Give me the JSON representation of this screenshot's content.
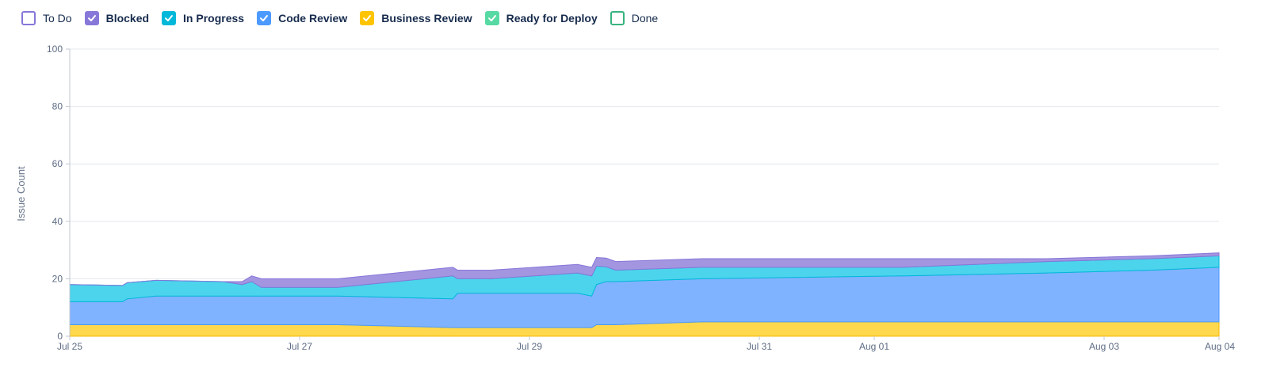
{
  "chart_data": {
    "type": "area",
    "stacked": true,
    "ylabel": "Issue Count",
    "ylim": [
      0,
      100
    ],
    "yticks": [
      "0",
      "20",
      "40",
      "60",
      "80",
      "100"
    ],
    "xlim": [
      "2024-07-25",
      "2024-08-04"
    ],
    "xticks": [
      {
        "date": "2024-07-25",
        "label": "Jul 25"
      },
      {
        "date": "2024-07-27",
        "label": "Jul 27"
      },
      {
        "date": "2024-07-29",
        "label": "Jul 29"
      },
      {
        "date": "2024-07-31",
        "label": "Jul 31"
      },
      {
        "date": "2024-08-01",
        "label": "Aug 01"
      },
      {
        "date": "2024-08-03",
        "label": "Aug 03"
      },
      {
        "date": "2024-08-04",
        "label": "Aug 04"
      }
    ],
    "grid": true,
    "legend_position": "top-left",
    "legend": [
      {
        "name": "To Do",
        "checked": false,
        "color": "#8777D9",
        "bold": false
      },
      {
        "name": "Blocked",
        "checked": true,
        "color": "#8777D9",
        "bold": true
      },
      {
        "name": "In Progress",
        "checked": true,
        "color": "#00B8D9",
        "bold": true
      },
      {
        "name": "Code Review",
        "checked": true,
        "color": "#4C9AFF",
        "bold": true
      },
      {
        "name": "Business Review",
        "checked": true,
        "color": "#FFC400",
        "bold": true
      },
      {
        "name": "Ready for Deploy",
        "checked": true,
        "color": "#57D9A3",
        "bold": true
      },
      {
        "name": "Done",
        "checked": false,
        "color": "#36B37E",
        "bold": false
      }
    ],
    "series": [
      {
        "name": "Business Review",
        "fill": "#FFD84D",
        "stroke": "#F5B800",
        "points": [
          [
            "2024-07-25 00:00",
            4
          ],
          [
            "2024-07-27 08:00",
            4
          ],
          [
            "2024-07-27 08:00",
            3
          ],
          [
            "2024-07-29 13:00",
            3
          ],
          [
            "2024-07-29 13:00",
            4
          ],
          [
            "2024-07-29 18:00",
            4
          ],
          [
            "2024-07-29 18:00",
            5
          ],
          [
            "2024-08-04 00:00",
            5
          ]
        ]
      },
      {
        "name": "Code Review",
        "fill": "#80B3FF",
        "stroke": "#4C9AFF",
        "points": [
          [
            "2024-07-25 00:00",
            8
          ],
          [
            "2024-07-25 11:00",
            8
          ],
          [
            "2024-07-25 12:00",
            9
          ],
          [
            "2024-07-25 18:00",
            10
          ],
          [
            "2024-07-27 08:00",
            10
          ],
          [
            "2024-07-27 08:00",
            10
          ],
          [
            "2024-07-28 08:00",
            10
          ],
          [
            "2024-07-28 09:00",
            12
          ],
          [
            "2024-07-28 16:00",
            12
          ],
          [
            "2024-07-28 16:00",
            13
          ],
          [
            "2024-07-29 10:00",
            12
          ],
          [
            "2024-07-29 13:00",
            11
          ],
          [
            "2024-07-29 14:00",
            14
          ],
          [
            "2024-07-29 16:00",
            15
          ],
          [
            "2024-07-29 18:00",
            15
          ],
          [
            "2024-07-30 12:00",
            15
          ],
          [
            "2024-08-01 06:00",
            16
          ],
          [
            "2024-08-01 06:00",
            17
          ],
          [
            "2024-08-02 12:00",
            17
          ],
          [
            "2024-08-03 10:00",
            18
          ],
          [
            "2024-08-03 10:00",
            19
          ],
          [
            "2024-08-04 00:00",
            19
          ]
        ]
      },
      {
        "name": "In Progress",
        "fill": "#4CD4EC",
        "stroke": "#00B8D9",
        "points": [
          [
            "2024-07-25 00:00",
            6
          ],
          [
            "2024-07-26 08:00",
            5
          ],
          [
            "2024-07-26 12:00",
            4
          ],
          [
            "2024-07-26 14:00",
            5
          ],
          [
            "2024-07-26 16:00",
            3
          ],
          [
            "2024-07-27 08:00",
            3
          ],
          [
            "2024-07-27 08:00",
            4
          ],
          [
            "2024-07-27 08:00",
            7
          ],
          [
            "2024-07-28 08:00",
            8
          ],
          [
            "2024-07-28 08:00",
            5
          ],
          [
            "2024-07-28 16:00",
            5
          ],
          [
            "2024-07-28 16:00",
            6
          ],
          [
            "2024-07-29 10:00",
            7
          ],
          [
            "2024-07-29 13:00",
            7
          ],
          [
            "2024-07-29 18:00",
            4
          ],
          [
            "2024-07-30 12:00",
            4
          ],
          [
            "2024-08-01 06:00",
            3
          ],
          [
            "2024-08-01 06:00",
            3
          ],
          [
            "2024-08-02 12:00",
            4
          ],
          [
            "2024-08-03 10:00",
            4
          ],
          [
            "2024-08-03 10:00",
            4
          ],
          [
            "2024-08-04 00:00",
            4
          ]
        ]
      },
      {
        "name": "Blocked",
        "fill": "#A495E0",
        "stroke": "#8777D9",
        "points": [
          [
            "2024-07-25 00:00",
            0
          ],
          [
            "2024-07-26 08:00",
            0
          ],
          [
            "2024-07-26 12:00",
            1
          ],
          [
            "2024-07-26 14:00",
            2
          ],
          [
            "2024-07-26 16:00",
            3
          ],
          [
            "2024-07-27 08:00",
            3
          ],
          [
            "2024-07-27 08:00",
            3
          ],
          [
            "2024-07-27 08:00",
            3
          ],
          [
            "2024-07-28 08:00",
            3
          ],
          [
            "2024-07-28 08:00",
            3
          ],
          [
            "2024-07-28 16:00",
            3
          ],
          [
            "2024-07-28 16:00",
            3
          ],
          [
            "2024-07-29 10:00",
            3
          ],
          [
            "2024-07-29 13:00",
            3
          ],
          [
            "2024-07-29 18:00",
            3
          ],
          [
            "2024-07-30 12:00",
            3
          ],
          [
            "2024-08-01 06:00",
            3
          ],
          [
            "2024-08-01 06:00",
            3
          ],
          [
            "2024-08-02 12:00",
            1
          ],
          [
            "2024-08-03 10:00",
            1
          ],
          [
            "2024-08-03 10:00",
            1
          ],
          [
            "2024-08-04 00:00",
            1
          ]
        ]
      }
    ]
  }
}
